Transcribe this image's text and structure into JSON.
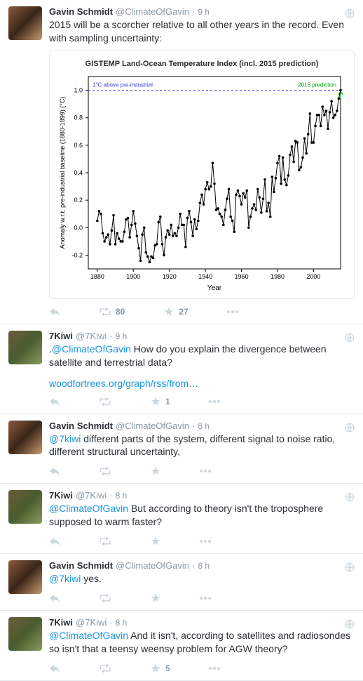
{
  "users": {
    "gavin": {
      "name": "Gavin Schmidt",
      "handle": "@ClimateOfGavin"
    },
    "kiwi": {
      "name": "7Kiwi",
      "handle": "@7Kiwi"
    }
  },
  "tweets": {
    "t1": {
      "time": "9 h",
      "text": "2015 will be a scorcher relative to all other years in the record. Even with sampling uncertainty:",
      "rt": "80",
      "fav": "27"
    },
    "t2": {
      "time": "9 h",
      "prefix": ".",
      "mention": "@ClimateOfGavin",
      "text": " How do you explain the divergence between satellite and terrestrial data?",
      "link": "woodfortrees.org/graph/rss/from…",
      "fav": "1"
    },
    "t3": {
      "time": "8 h",
      "mention": "@7kiwi",
      "text": " different parts of the system, different signal to noise ratio, different structural uncertainty,"
    },
    "t4": {
      "time": "8 h",
      "mention": "@ClimateOfGavin",
      "text": " But according to theory isn't the troposphere supposed to warm faster?"
    },
    "t5": {
      "time": "8 h",
      "mention": "@7kiwi",
      "text": " yes."
    },
    "t6": {
      "time": "8 h",
      "mention": "@ClimateOfGavin",
      "text": " And it isn't, according to satellites and radiosondes so isn't that a teensy weensy problem for AGW theory?",
      "fav": "5"
    }
  },
  "chart": {
    "title": "GISTEMP Land-Ocean Temperature Index (incl. 2015 prediction)",
    "ylabel": "Anomaly w.r.t. pre-industrial baseline (1880-1899) (°C)",
    "xlabel": "Year",
    "dash_label": "1°C above pre-industrial",
    "pred_label": "2015 prediction",
    "pred_color": "#00a800",
    "dash_color": "#3a3ae0",
    "line_color": "#000000",
    "xlim": [
      1875,
      2015
    ],
    "ylim": [
      -0.3,
      1.1
    ],
    "xticks": [
      1880,
      1900,
      1920,
      1940,
      1960,
      1980,
      2000
    ],
    "yticks": [
      -0.2,
      0.0,
      0.2,
      0.4,
      0.6,
      0.8,
      1.0
    ],
    "marker_size": 1.8,
    "data": [
      [
        1880,
        0.05
      ],
      [
        1881,
        0.12
      ],
      [
        1882,
        0.1
      ],
      [
        1883,
        -0.04
      ],
      [
        1884,
        -0.1
      ],
      [
        1885,
        -0.07
      ],
      [
        1886,
        -0.05
      ],
      [
        1887,
        -0.12
      ],
      [
        1888,
        -0.02
      ],
      [
        1889,
        0.09
      ],
      [
        1890,
        -0.12
      ],
      [
        1891,
        -0.04
      ],
      [
        1892,
        -0.08
      ],
      [
        1893,
        -0.1
      ],
      [
        1894,
        -0.1
      ],
      [
        1895,
        -0.03
      ],
      [
        1896,
        0.06
      ],
      [
        1897,
        0.07
      ],
      [
        1898,
        -0.07
      ],
      [
        1899,
        0.02
      ],
      [
        1900,
        0.12
      ],
      [
        1901,
        0.03
      ],
      [
        1902,
        -0.06
      ],
      [
        1903,
        -0.15
      ],
      [
        1904,
        -0.24
      ],
      [
        1905,
        -0.05
      ],
      [
        1906,
        0.0
      ],
      [
        1907,
        -0.18
      ],
      [
        1908,
        -0.21
      ],
      [
        1909,
        -0.25
      ],
      [
        1910,
        -0.21
      ],
      [
        1911,
        -0.22
      ],
      [
        1912,
        -0.13
      ],
      [
        1913,
        -0.12
      ],
      [
        1914,
        0.04
      ],
      [
        1915,
        0.08
      ],
      [
        1916,
        -0.12
      ],
      [
        1917,
        -0.2
      ],
      [
        1918,
        -0.07
      ],
      [
        1919,
        -0.02
      ],
      [
        1920,
        -0.05
      ],
      [
        1921,
        0.02
      ],
      [
        1922,
        -0.06
      ],
      [
        1923,
        -0.04
      ],
      [
        1924,
        -0.06
      ],
      [
        1925,
        0.0
      ],
      [
        1926,
        0.1
      ],
      [
        1927,
        0.02
      ],
      [
        1928,
        0.02
      ],
      [
        1929,
        -0.14
      ],
      [
        1930,
        0.07
      ],
      [
        1931,
        0.12
      ],
      [
        1932,
        0.04
      ],
      [
        1933,
        -0.06
      ],
      [
        1934,
        0.06
      ],
      [
        1935,
        -0.01
      ],
      [
        1936,
        0.05
      ],
      [
        1937,
        0.18
      ],
      [
        1938,
        0.24
      ],
      [
        1939,
        0.17
      ],
      [
        1940,
        0.28
      ],
      [
        1941,
        0.33
      ],
      [
        1942,
        0.28
      ],
      [
        1943,
        0.3
      ],
      [
        1944,
        0.47
      ],
      [
        1945,
        0.32
      ],
      [
        1946,
        0.13
      ],
      [
        1947,
        0.14
      ],
      [
        1948,
        0.1
      ],
      [
        1949,
        0.08
      ],
      [
        1950,
        0.02
      ],
      [
        1951,
        0.13
      ],
      [
        1952,
        0.21
      ],
      [
        1953,
        0.28
      ],
      [
        1954,
        0.08
      ],
      [
        1955,
        0.05
      ],
      [
        1956,
        -0.03
      ],
      [
        1957,
        0.24
      ],
      [
        1958,
        0.27
      ],
      [
        1959,
        0.23
      ],
      [
        1960,
        0.17
      ],
      [
        1961,
        0.25
      ],
      [
        1962,
        0.22
      ],
      [
        1963,
        0.27
      ],
      [
        1964,
        0.0
      ],
      [
        1965,
        0.08
      ],
      [
        1966,
        0.14
      ],
      [
        1967,
        0.17
      ],
      [
        1968,
        0.13
      ],
      [
        1969,
        0.28
      ],
      [
        1970,
        0.22
      ],
      [
        1971,
        0.11
      ],
      [
        1972,
        0.21
      ],
      [
        1973,
        0.35
      ],
      [
        1974,
        0.12
      ],
      [
        1975,
        0.18
      ],
      [
        1976,
        0.08
      ],
      [
        1977,
        0.37
      ],
      [
        1978,
        0.26
      ],
      [
        1979,
        0.36
      ],
      [
        1980,
        0.47
      ],
      [
        1981,
        0.52
      ],
      [
        1982,
        0.32
      ],
      [
        1983,
        0.51
      ],
      [
        1984,
        0.35
      ],
      [
        1985,
        0.31
      ],
      [
        1986,
        0.38
      ],
      [
        1987,
        0.53
      ],
      [
        1988,
        0.59
      ],
      [
        1989,
        0.48
      ],
      [
        1990,
        0.63
      ],
      [
        1991,
        0.62
      ],
      [
        1992,
        0.42
      ],
      [
        1993,
        0.44
      ],
      [
        1994,
        0.51
      ],
      [
        1995,
        0.65
      ],
      [
        1996,
        0.54
      ],
      [
        1997,
        0.68
      ],
      [
        1998,
        0.83
      ],
      [
        1999,
        0.62
      ],
      [
        2000,
        0.62
      ],
      [
        2001,
        0.74
      ],
      [
        2002,
        0.82
      ],
      [
        2003,
        0.82
      ],
      [
        2004,
        0.74
      ],
      [
        2005,
        0.88
      ],
      [
        2006,
        0.82
      ],
      [
        2007,
        0.85
      ],
      [
        2008,
        0.72
      ],
      [
        2009,
        0.84
      ],
      [
        2010,
        0.92
      ],
      [
        2011,
        0.8
      ],
      [
        2012,
        0.82
      ],
      [
        2013,
        0.85
      ],
      [
        2014,
        0.94
      ],
      [
        2015,
        1.0
      ]
    ]
  }
}
